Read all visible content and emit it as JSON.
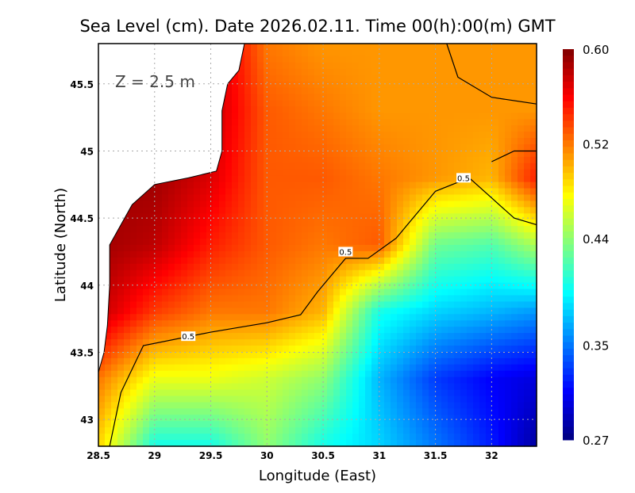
{
  "chart_data": {
    "type": "heatmap",
    "title": "Sea Level (cm). Date 2026.02.11. Time 00(h):00(m) GMT",
    "xlabel": "Longitude (East)",
    "ylabel": "Latitude (North)",
    "annotation": "Z = 2.5 m",
    "xlim": [
      28.5,
      32.4
    ],
    "ylim": [
      42.8,
      45.8
    ],
    "xticks": [
      28.5,
      29,
      29.5,
      30,
      30.5,
      31,
      31.5,
      32
    ],
    "xtick_labels": [
      "28.5",
      "29",
      "29.5",
      "30",
      "30.5",
      "31",
      "31.5",
      "32"
    ],
    "yticks": [
      43,
      43.5,
      44,
      44.5,
      45,
      45.5
    ],
    "ytick_labels": [
      "43",
      "43.5",
      "44",
      "44.5",
      "45",
      "45.5"
    ],
    "grid": true,
    "colorbar": {
      "range": [
        0.27,
        0.6
      ],
      "ticks": [
        "0.60",
        "0.52",
        "0.44",
        "0.35",
        "0.27"
      ],
      "tick_values": [
        0.6,
        0.52,
        0.44,
        0.35,
        0.27
      ],
      "colormap": "jet",
      "placement": "right"
    },
    "grid_lon": [
      28.5,
      29,
      29.5,
      30,
      30.5,
      31,
      31.5,
      32,
      32.4
    ],
    "grid_lat": [
      45.8,
      45.3,
      44.8,
      44.3,
      43.8,
      43.3,
      42.8
    ],
    "values": [
      [
        0.58,
        0.58,
        0.58,
        0.52,
        0.51,
        0.51,
        0.51,
        0.51,
        0.51
      ],
      [
        0.58,
        0.58,
        0.58,
        0.53,
        0.52,
        0.51,
        0.51,
        0.51,
        0.51
      ],
      [
        0.59,
        0.59,
        0.57,
        0.53,
        0.53,
        0.52,
        0.51,
        0.5,
        0.55
      ],
      [
        0.59,
        0.58,
        0.55,
        0.53,
        0.52,
        0.53,
        0.43,
        0.42,
        0.45
      ],
      [
        0.58,
        0.54,
        0.52,
        0.52,
        0.5,
        0.4,
        0.38,
        0.37,
        0.36
      ],
      [
        0.52,
        0.47,
        0.47,
        0.46,
        0.44,
        0.37,
        0.33,
        0.31,
        0.3
      ],
      [
        0.49,
        0.4,
        0.4,
        0.44,
        0.4,
        0.38,
        0.35,
        0.32,
        0.28
      ]
    ],
    "land": [
      [
        28.5,
        45.8
      ],
      [
        29.8,
        45.8
      ],
      [
        29.75,
        45.6
      ],
      [
        29.65,
        45.5
      ],
      [
        29.6,
        45.3
      ],
      [
        29.6,
        45.0
      ],
      [
        29.55,
        44.85
      ],
      [
        29.3,
        44.8
      ],
      [
        29.0,
        44.75
      ],
      [
        28.8,
        44.6
      ],
      [
        28.7,
        44.45
      ],
      [
        28.6,
        44.3
      ],
      [
        28.6,
        44.0
      ],
      [
        28.58,
        43.7
      ],
      [
        28.55,
        43.5
      ],
      [
        28.5,
        43.35
      ]
    ],
    "contours": [
      {
        "level": "0.5",
        "points": [
          [
            28.6,
            42.8
          ],
          [
            28.7,
            43.2
          ],
          [
            28.9,
            43.55
          ],
          [
            29.5,
            43.65
          ],
          [
            30,
            43.72
          ],
          [
            30.3,
            43.78
          ],
          [
            30.45,
            43.95
          ],
          [
            30.7,
            44.2
          ],
          [
            30.9,
            44.2
          ],
          [
            31.15,
            44.35
          ],
          [
            31.5,
            44.7
          ],
          [
            31.8,
            44.8
          ],
          [
            32.0,
            44.65
          ],
          [
            32.2,
            44.5
          ],
          [
            32.4,
            44.45
          ]
        ],
        "labels": [
          [
            29.3,
            43.62
          ],
          [
            30.7,
            44.25
          ],
          [
            31.75,
            44.8
          ]
        ]
      },
      {
        "level": "0.5",
        "points": [
          [
            31.6,
            45.8
          ],
          [
            31.7,
            45.55
          ],
          [
            32.0,
            45.4
          ],
          [
            32.4,
            45.35
          ]
        ],
        "labels": []
      },
      {
        "level": "0.5",
        "points": [
          [
            32.0,
            44.92
          ],
          [
            32.2,
            45.0
          ],
          [
            32.4,
            45.0
          ]
        ],
        "labels": []
      }
    ]
  }
}
